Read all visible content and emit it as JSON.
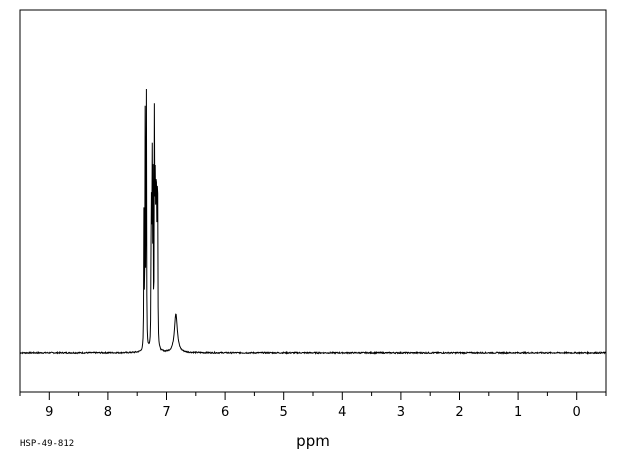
{
  "chart_data": {
    "type": "line",
    "xlabel": "ppm",
    "spectrum_code": "HSP-49-812",
    "x_reversed": true,
    "xlim": [
      9.5,
      -0.5
    ],
    "ylim": [
      -0.12,
      1.05
    ],
    "x_ticks": [
      9,
      8,
      7,
      6,
      5,
      4,
      3,
      2,
      1,
      0
    ],
    "x_minor_step": 0.5,
    "grid": false,
    "baseline": 0.0,
    "peaks": [
      {
        "ppm": 7.385,
        "height": 0.42
      },
      {
        "ppm": 7.365,
        "height": 0.72
      },
      {
        "ppm": 7.345,
        "height": 1.0
      },
      {
        "ppm": 7.26,
        "height": 0.6
      },
      {
        "ppm": 7.245,
        "height": 0.7
      },
      {
        "ppm": 7.23,
        "height": 0.55
      },
      {
        "ppm": 7.205,
        "height": 0.88
      },
      {
        "ppm": 7.19,
        "height": 0.65
      },
      {
        "ppm": 7.175,
        "height": 0.72
      },
      {
        "ppm": 7.16,
        "height": 0.55
      },
      {
        "ppm": 7.15,
        "height": 0.38
      },
      {
        "ppm": 6.84,
        "height": 0.12
      }
    ]
  }
}
